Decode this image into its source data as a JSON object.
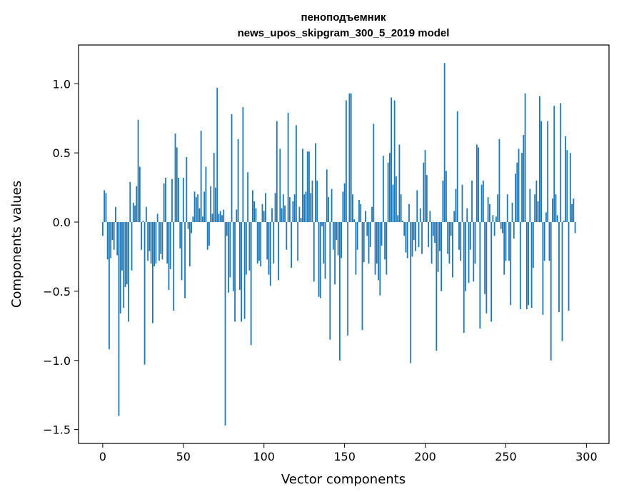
{
  "chart_data": {
    "type": "bar",
    "title_line1": "пеноподъемник",
    "title_line2": "news_upos_skipgram_300_5_2019 model",
    "xlabel": "Vector components",
    "ylabel": "Components values",
    "xlim": [
      -15,
      314
    ],
    "ylim": [
      -1.6,
      1.28
    ],
    "xticks": [
      0,
      50,
      100,
      150,
      200,
      250,
      300
    ],
    "xtick_labels": [
      "0",
      "50",
      "100",
      "150",
      "200",
      "250",
      "300"
    ],
    "yticks": [
      -1.5,
      -1.0,
      -0.5,
      0.0,
      0.5,
      1.0
    ],
    "ytick_labels": [
      "−1.5",
      "−1.0",
      "−0.5",
      "0.0",
      "0.5",
      "1.0"
    ],
    "grid": false,
    "bar_color": "#1f77b4",
    "values": [
      -0.1,
      0.23,
      0.21,
      -0.27,
      -0.92,
      -0.26,
      -0.13,
      -0.2,
      0.11,
      -0.24,
      -1.4,
      -0.66,
      -0.35,
      -0.62,
      -0.47,
      -0.45,
      -0.72,
      0.29,
      -0.35,
      0.14,
      0.12,
      0.26,
      0.74,
      0.4,
      -0.2,
      0.01,
      -1.03,
      0.11,
      -0.28,
      -0.21,
      -0.3,
      -0.73,
      -0.32,
      -0.3,
      0.06,
      -0.28,
      -0.23,
      -0.27,
      0.28,
      0.32,
      -0.3,
      -0.49,
      -0.34,
      0.31,
      -0.64,
      0.64,
      0.54,
      0.32,
      -0.19,
      -0.42,
      0.32,
      -0.55,
      0.47,
      -0.05,
      -0.32,
      -0.08,
      0.04,
      0.22,
      0.18,
      0.2,
      0.1,
      0.66,
      0.04,
      0.22,
      0.4,
      -0.2,
      -0.17,
      0.26,
      0.06,
      0.5,
      0.25,
      0.97,
      0.06,
      0.08,
      0.05,
      0.09,
      -1.47,
      -0.1,
      -0.51,
      -0.4,
      0.78,
      -0.5,
      -0.72,
      0.09,
      0.6,
      -0.49,
      -0.72,
      0.83,
      -0.7,
      -0.38,
      0.36,
      -0.35,
      -0.89,
      0.23,
      0.15,
      0.1,
      -0.3,
      -0.28,
      -0.32,
      0.13,
      0.08,
      0.21,
      -0.27,
      -0.38,
      -0.46,
      0.1,
      -0.3,
      0.21,
      0.73,
      -0.42,
      0.53,
      0.1,
      0.2,
      0.12,
      -0.2,
      0.79,
      0.18,
      -0.33,
      0.15,
      0.2,
      0.7,
      -0.28,
      0.11,
      0.03,
      0.53,
      0.2,
      0.22,
      0.51,
      0.51,
      0.21,
      0.3,
      -0.43,
      0.57,
      0.3,
      -0.54,
      -0.55,
      -0.03,
      -0.3,
      -0.41,
      0.38,
      0.18,
      -0.85,
      0.24,
      -0.2,
      -0.45,
      -0.13,
      -0.24,
      -1.0,
      -0.26,
      0.22,
      0.28,
      0.88,
      -0.82,
      0.93,
      0.93,
      0.2,
      0.02,
      -0.38,
      -0.2,
      0.16,
      0.13,
      -0.78,
      -0.29,
      0.08,
      -0.1,
      -0.3,
      -0.18,
      0.11,
      0.71,
      -0.38,
      -0.3,
      -0.42,
      -0.53,
      -0.17,
      0.48,
      -0.27,
      -0.38,
      0.43,
      0.5,
      0.9,
      0.27,
      0.88,
      0.33,
      0.05,
      0.56,
      0.2,
      0.01,
      -0.1,
      -0.22,
      -0.26,
      0.13,
      -1.02,
      -0.25,
      -0.13,
      -0.21,
      0.23,
      -0.18,
      0.1,
      -0.23,
      0.43,
      0.52,
      0.34,
      -0.18,
      0.08,
      -0.3,
      -0.1,
      -0.15,
      -0.93,
      -0.36,
      -0.21,
      -0.5,
      0.3,
      1.15,
      0.37,
      -0.23,
      -0.3,
      -0.1,
      -0.4,
      0.08,
      0.24,
      0.8,
      -0.2,
      -0.28,
      0.27,
      -0.8,
      -0.5,
      0.1,
      -0.44,
      -0.2,
      0.3,
      -0.43,
      -0.3,
      0.56,
      0.54,
      -0.77,
      0.27,
      0.3,
      -0.52,
      -0.66,
      0.18,
      0.13,
      -0.72,
      0.05,
      -0.1,
      0.04,
      0.2,
      0.6,
      -0.05,
      -0.08,
      -0.38,
      -0.28,
      0.2,
      -0.28,
      -0.6,
      0.14,
      -0.12,
      0.35,
      0.43,
      0.53,
      -0.63,
      0.5,
      0.63,
      0.93,
      -0.63,
      -0.6,
      0.24,
      -0.62,
      -0.33,
      0.2,
      0.3,
      0.15,
      0.91,
      0.73,
      -0.67,
      -0.28,
      0.07,
      0.73,
      -0.28,
      -1.0,
      0.17,
      0.84,
      0.2,
      0.05,
      -0.65,
      0.86,
      -0.86,
      0.01,
      0.62,
      0.52,
      -0.64,
      0.5,
      0.13,
      0.17,
      -0.08
    ]
  }
}
